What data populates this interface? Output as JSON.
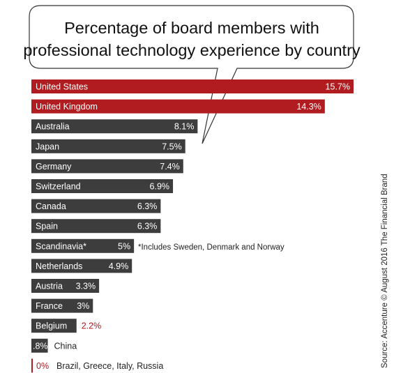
{
  "chart_data": {
    "type": "bar",
    "orientation": "horizontal",
    "title": "Percentage of board members with professional technology experience by country",
    "title_lines": [
      "Percentage of board members with",
      "professional technology experience by country"
    ],
    "categories": [
      "United States",
      "United Kingdom",
      "Australia",
      "Japan",
      "Germany",
      "Switzerland",
      "Canada",
      "Spain",
      "Scandinavia*",
      "Netherlands",
      "Austria",
      "France",
      "Belgium",
      "China",
      "Brazil, Greece, Italy, Russia"
    ],
    "values": [
      15.7,
      14.3,
      8.1,
      7.5,
      7.4,
      6.9,
      6.3,
      6.3,
      5,
      4.9,
      3.3,
      3,
      2.2,
      0.8,
      0
    ],
    "value_labels": [
      "15.7%",
      "14.3%",
      "8.1%",
      "7.5%",
      "7.4%",
      "6.9%",
      "6.3%",
      "6.3%",
      "5%",
      "4.9%",
      "3.3%",
      "3%",
      "2.2%",
      ".8%",
      "0%"
    ],
    "highlighted": [
      "United States",
      "United Kingdom"
    ],
    "note": "*Includes Sweden, Denmark and Norway",
    "source": "Source: Accenture © August 2016 The Financial Brand",
    "xlim": [
      0,
      15.7
    ],
    "colors": {
      "highlight": "#b01c20",
      "bar": "#3d3d3d",
      "red_text": "#b01c20"
    }
  }
}
